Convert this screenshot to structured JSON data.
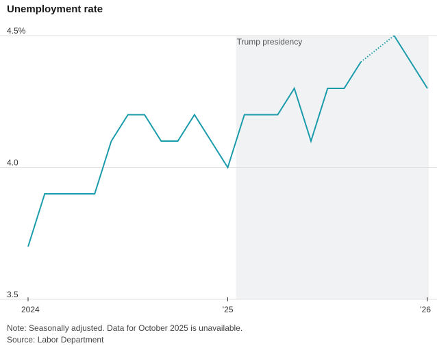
{
  "chart_data": {
    "type": "line",
    "title": "Unemployment rate",
    "y_unit_suffix": "%",
    "ylim": [
      3.5,
      4.5
    ],
    "yticks": [
      {
        "value": 3.5,
        "label": "3.5"
      },
      {
        "value": 4.0,
        "label": "4.0"
      },
      {
        "value": 4.5,
        "label": "4.5%"
      }
    ],
    "xticks": [
      {
        "label": "2024"
      },
      {
        "label": "’25"
      },
      {
        "label": "’26"
      }
    ],
    "x_start": "2024-01",
    "x_end": "2026-01",
    "series": [
      {
        "x": [
          "2024-01",
          "2024-02",
          "2024-03",
          "2024-04",
          "2024-05",
          "2024-06",
          "2024-07",
          "2024-08",
          "2024-09",
          "2024-10",
          "2024-11",
          "2024-12",
          "2025-01",
          "2025-02",
          "2025-03",
          "2025-04",
          "2025-05",
          "2025-06",
          "2025-07",
          "2025-08",
          "2025-09",
          "2025-10",
          "2025-11",
          "2025-12",
          "2026-01"
        ],
        "values": [
          3.7,
          3.9,
          3.9,
          3.9,
          3.9,
          4.1,
          4.2,
          4.2,
          4.1,
          4.1,
          4.2,
          4.1,
          4.0,
          4.2,
          4.2,
          4.2,
          4.3,
          4.1,
          4.3,
          4.3,
          4.4,
          null,
          4.5,
          4.4,
          4.3
        ],
        "color": "#1a9bab",
        "gap_style": "dotted"
      }
    ],
    "shaded_region": {
      "from": "2025-01",
      "to": "2026-01",
      "label": "Trump presidency",
      "color": "#f1f2f4"
    },
    "gridline_color": "#e2e2e2",
    "grid": true,
    "legend": false
  },
  "notes": {
    "note": "Note: Seasonally adjusted. Data for October 2025 is unavailable.",
    "source": "Source: Labor Department"
  }
}
